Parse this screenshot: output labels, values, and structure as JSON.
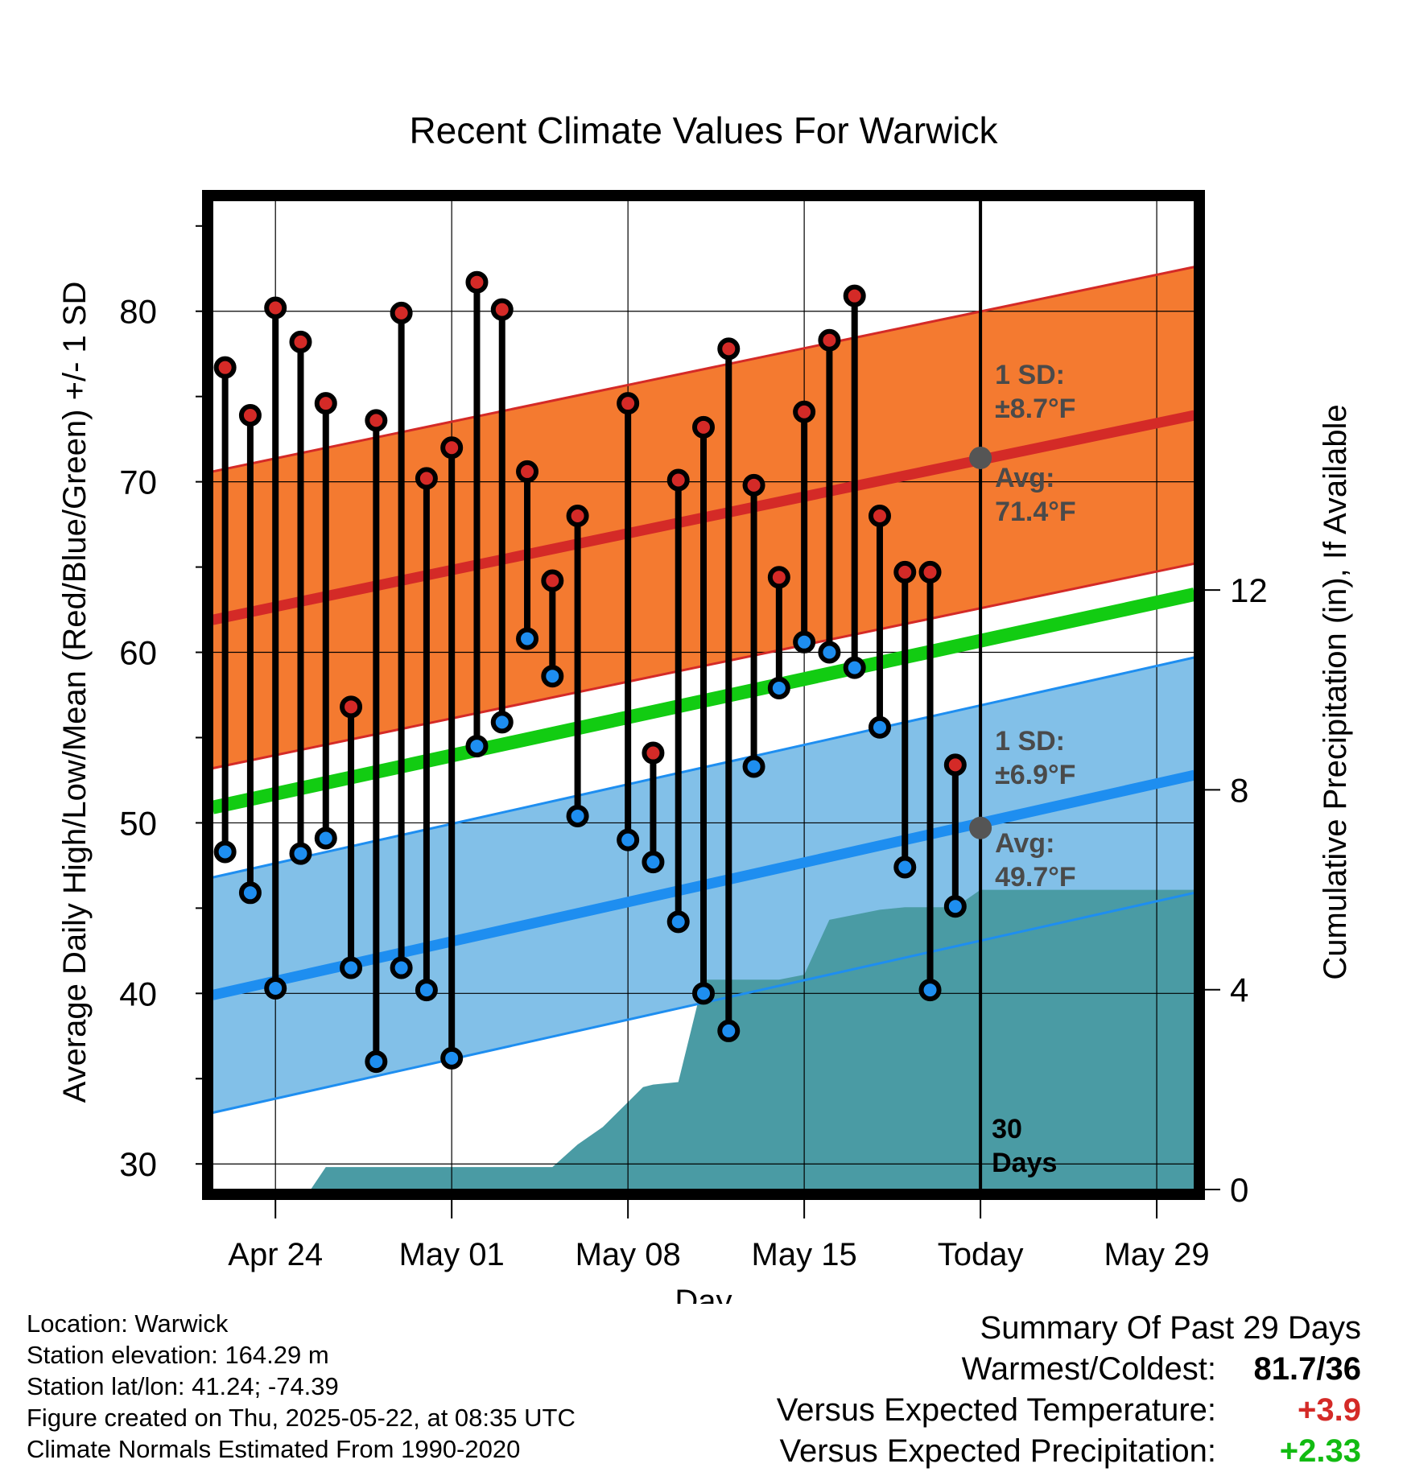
{
  "chart_data": {
    "type": "climate-range",
    "title": "Recent Climate Values For Warwick",
    "xlabel": "Day",
    "ylabel_left": "Average Daily High/Low/Mean (Red/Blue/Green) +/- 1 SD",
    "ylabel_right": "Cumulative Precipitation (in), If Available",
    "x_tick_labels": [
      "Apr 24",
      "May 01",
      "May 08",
      "May 15",
      "Today",
      "May 29"
    ],
    "x_tick_days": [
      2,
      9,
      16,
      23,
      30,
      37
    ],
    "x_range": [
      -0.5,
      38.5
    ],
    "y_range": [
      28.5,
      86.5
    ],
    "y_ticks": [
      30,
      40,
      50,
      60,
      70,
      80
    ],
    "y2_range": [
      0,
      19.8
    ],
    "y2_ticks": [
      0,
      4,
      8,
      12
    ],
    "today_day": 30,
    "today_label": [
      "30",
      "Days"
    ],
    "highs": [
      76.7,
      73.9,
      80.2,
      78.2,
      74.6,
      56.8,
      73.6,
      79.9,
      70.2,
      72.0,
      81.7,
      80.1,
      70.6,
      64.2,
      68.0,
      null,
      74.6,
      54.1,
      70.1,
      73.2,
      77.8,
      69.8,
      64.4,
      74.1,
      78.3,
      80.9,
      68.0,
      64.7,
      64.7,
      53.4
    ],
    "lows": [
      48.3,
      45.9,
      40.3,
      48.2,
      49.1,
      41.5,
      36.0,
      41.5,
      40.2,
      36.2,
      54.5,
      55.9,
      60.8,
      58.6,
      50.4,
      null,
      49.0,
      47.7,
      44.2,
      40.0,
      37.8,
      53.3,
      57.9,
      60.6,
      60.0,
      59.1,
      55.6,
      47.4,
      40.2,
      45.1
    ],
    "normal_high": {
      "start": 61.9,
      "end": 73.9,
      "sd": 8.7,
      "today_avg": 71.4
    },
    "normal_low": {
      "start": 39.9,
      "end": 52.8,
      "sd": 6.9,
      "today_avg": 49.7
    },
    "normal_mean": {
      "start": 50.9,
      "end": 63.4
    },
    "precip_cumulative": [
      0,
      0,
      0,
      0,
      0,
      0,
      0,
      0,
      0,
      0,
      0,
      0,
      0,
      0,
      0,
      0,
      0,
      0,
      0,
      0,
      0,
      0,
      0,
      0,
      0,
      0,
      0,
      0,
      0,
      0,
      0,
      0,
      0,
      0,
      0,
      0,
      0,
      0,
      0,
      0
    ],
    "precip_x": [
      3.4,
      4,
      5,
      6,
      7,
      8,
      9,
      10,
      11,
      12,
      13,
      14,
      15,
      16,
      16.6,
      17,
      18,
      19,
      20,
      21,
      22,
      23,
      24,
      25,
      26,
      27,
      28,
      29,
      30,
      38.5
    ],
    "precip_y": [
      0,
      0.45,
      0.45,
      0.45,
      0.45,
      0.45,
      0.45,
      0.45,
      0.45,
      0.45,
      0.45,
      0.9,
      1.25,
      1.75,
      2.05,
      2.1,
      2.15,
      4.2,
      4.2,
      4.2,
      4.2,
      4.3,
      5.4,
      5.5,
      5.6,
      5.65,
      5.65,
      5.65,
      6.0,
      6.0
    ],
    "high_sd_label": [
      "1 SD:",
      "±8.7°F"
    ],
    "high_avg_label": [
      "Avg:",
      "71.4°F"
    ],
    "low_sd_label": [
      "1 SD:",
      "±6.9°F"
    ],
    "low_avg_label": [
      "Avg:",
      "49.7°F"
    ],
    "colors": {
      "high_band": "#f47a30",
      "high_line": "#d42a27",
      "low_band": "#82c0e8",
      "low_line": "#1e8ef0",
      "mean_line": "#12cc12",
      "precip": "#4a9ba4",
      "high_dot": "#d42a27",
      "low_dot": "#1e8ef0",
      "annotation": "#4a4a4a"
    }
  },
  "info": {
    "location": "Location: Warwick",
    "elevation": "Station elevation: 164.29 m",
    "latlon": "Station lat/lon: 41.24; -74.39",
    "created": "Figure created on Thu, 2025-05-22, at 08:35 UTC",
    "normals": "Climate Normals Estimated From 1990-2020"
  },
  "summary": {
    "heading": "Summary Of Past 29 Days",
    "warm_cold_label": "Warmest/Coldest:",
    "warm_cold_value": "81.7/36",
    "temp_label": "Versus Expected Temperature:",
    "temp_value": "+3.9",
    "temp_color": "#d42a27",
    "precip_label": "Versus Expected Precipitation:",
    "precip_value": "+2.33",
    "precip_color": "#12bb12"
  }
}
